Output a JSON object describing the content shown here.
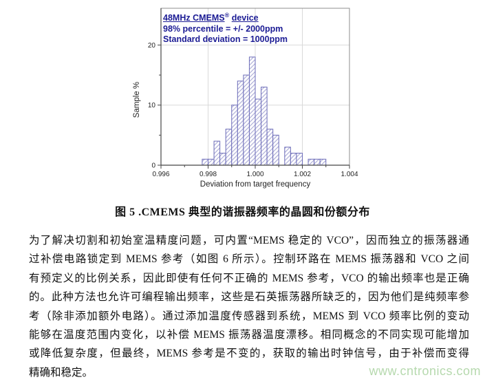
{
  "page": {
    "background": "#ffffff"
  },
  "chart_data": {
    "type": "bar",
    "title": "48MHz CMEMS® device",
    "title_parts": {
      "main": "48MHz CMEMS",
      "sup": "®",
      "tail": "device"
    },
    "annotations": [
      "98% percentile = +/- 2000ppm",
      "Standard deviation = 1000ppm"
    ],
    "xlabel": "Deviation from target frequency",
    "ylabel": "Sample %",
    "xlim": [
      0.996,
      1.004
    ],
    "ylim": [
      0,
      23
    ],
    "x_major_ticks": [
      0.996,
      0.998,
      1.0,
      1.002,
      1.004
    ],
    "x_tick_labels": [
      "0.996",
      "0.998",
      "1.000",
      "1.002",
      "1.004"
    ],
    "x_minor_ticks": [
      0.997,
      0.999,
      1.001,
      1.003
    ],
    "y_major_ticks": [
      0,
      10,
      20
    ],
    "y_minor_ticks": [
      5,
      15
    ],
    "bin_start": 0.99775,
    "bin_width": 0.00025,
    "values": [
      1,
      1,
      4,
      2,
      6,
      10,
      14,
      15,
      18,
      11,
      13,
      6,
      5,
      0,
      3,
      2,
      2,
      0,
      1,
      1,
      1
    ],
    "grid": true,
    "legend_position": "none",
    "colors": {
      "bar_edge": "#6a6ab8",
      "bar_hatch": "#9e9ed0",
      "bar_fill": "#ffffff",
      "annotation_text": "#1b1b94",
      "grid_line": "#d9d9d9",
      "axis_line": "#454545",
      "frame_line": "#8c8c8c",
      "tick_label": "#222222",
      "axis_label": "#222222"
    }
  },
  "caption": {
    "text": "图 5 .CMEMS 典型的谐振器频率的晶圆和份额分布"
  },
  "body": {
    "lines": [
      "为了解决切割和初始室温精度问题，可内置“MEMS 稳定的 VCO”，因而独立的振荡器通",
      "过补偿电路锁定到 MEMS 参考（如图 6 所示）。控制环路在 MEMS 振荡器和 VCO 之间",
      "有预定义的比例关系，因此即使有任何不正确的 MEMS 参考，VCO 的输出频率也是正确",
      "的。此种方法也允许可编程输出频率，这些是石英振荡器所缺乏的，因为他们是纯频率参",
      "考（除非添加额外电路）。通过添加温度传感器到系统，MEMS 到 VCO 频率比例的变动",
      "能够在温度范围内变化，以补偿 MEMS 振荡器温度漂移。相同概念的不同实现可能增加",
      "或降低复杂度，但最终，MEMS 参考是不变的，获取的输出时钟信号，由于补偿而变得",
      "精确和稳定。"
    ]
  },
  "watermark": {
    "text": "www.cntronics.com",
    "color": "#b6d9ae"
  }
}
